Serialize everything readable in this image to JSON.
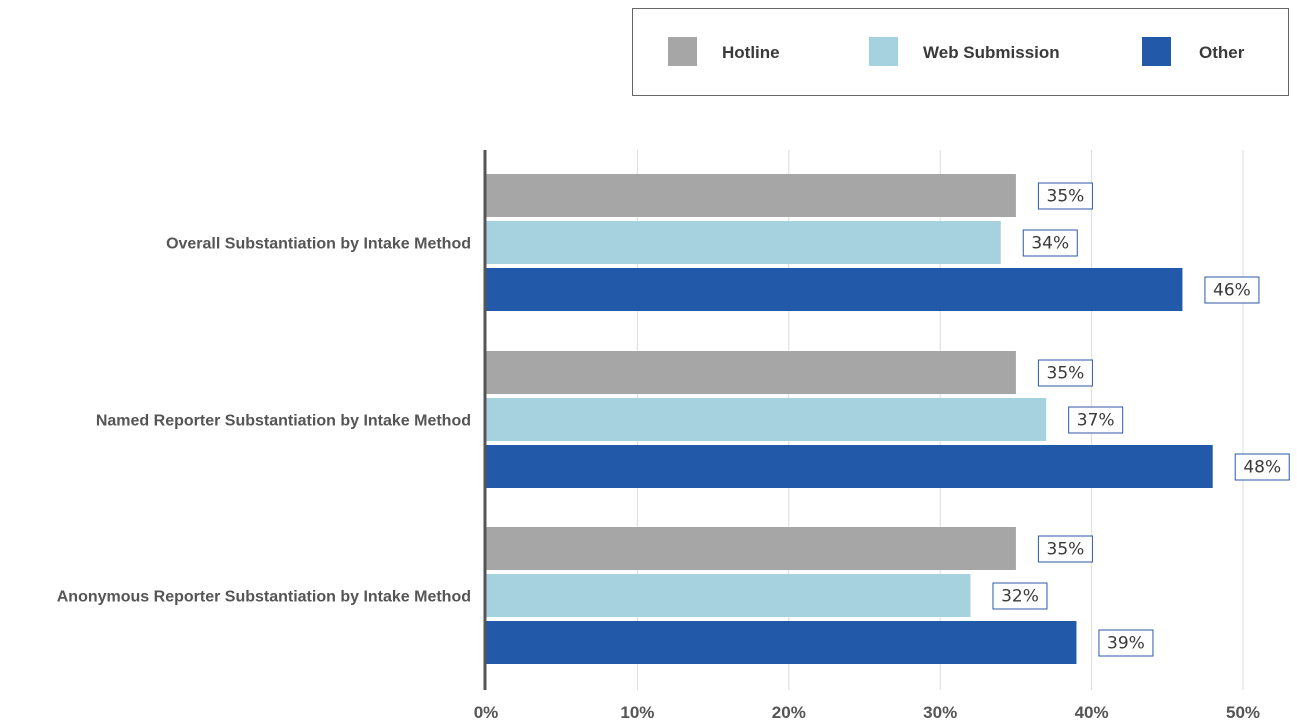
{
  "chart_data": {
    "type": "bar",
    "orientation": "horizontal",
    "categories": [
      "Overall Substantiation by Intake Method",
      "Named Reporter Substantiation by Intake Method",
      "Anonymous Reporter Substantiation by Intake Method"
    ],
    "series": [
      {
        "name": "Hotline",
        "color": "#a6a6a6",
        "values": [
          35,
          35,
          35
        ],
        "labels": [
          "35%",
          "35%",
          "35%"
        ]
      },
      {
        "name": "Web Submission",
        "color": "#a5d2de",
        "values": [
          34,
          37,
          32
        ],
        "labels": [
          "34%",
          "37%",
          "32%"
        ]
      },
      {
        "name": "Other",
        "color": "#225aa9",
        "values": [
          46,
          48,
          39
        ],
        "labels": [
          "46%",
          "48%",
          "39%"
        ]
      }
    ],
    "x_ticks": [
      "0%",
      "10%",
      "20%",
      "30%",
      "40%",
      "50%"
    ],
    "xlim": [
      0,
      50
    ],
    "grid": true,
    "legend_position": "top-right",
    "title": "",
    "xlabel": "",
    "ylabel": ""
  }
}
